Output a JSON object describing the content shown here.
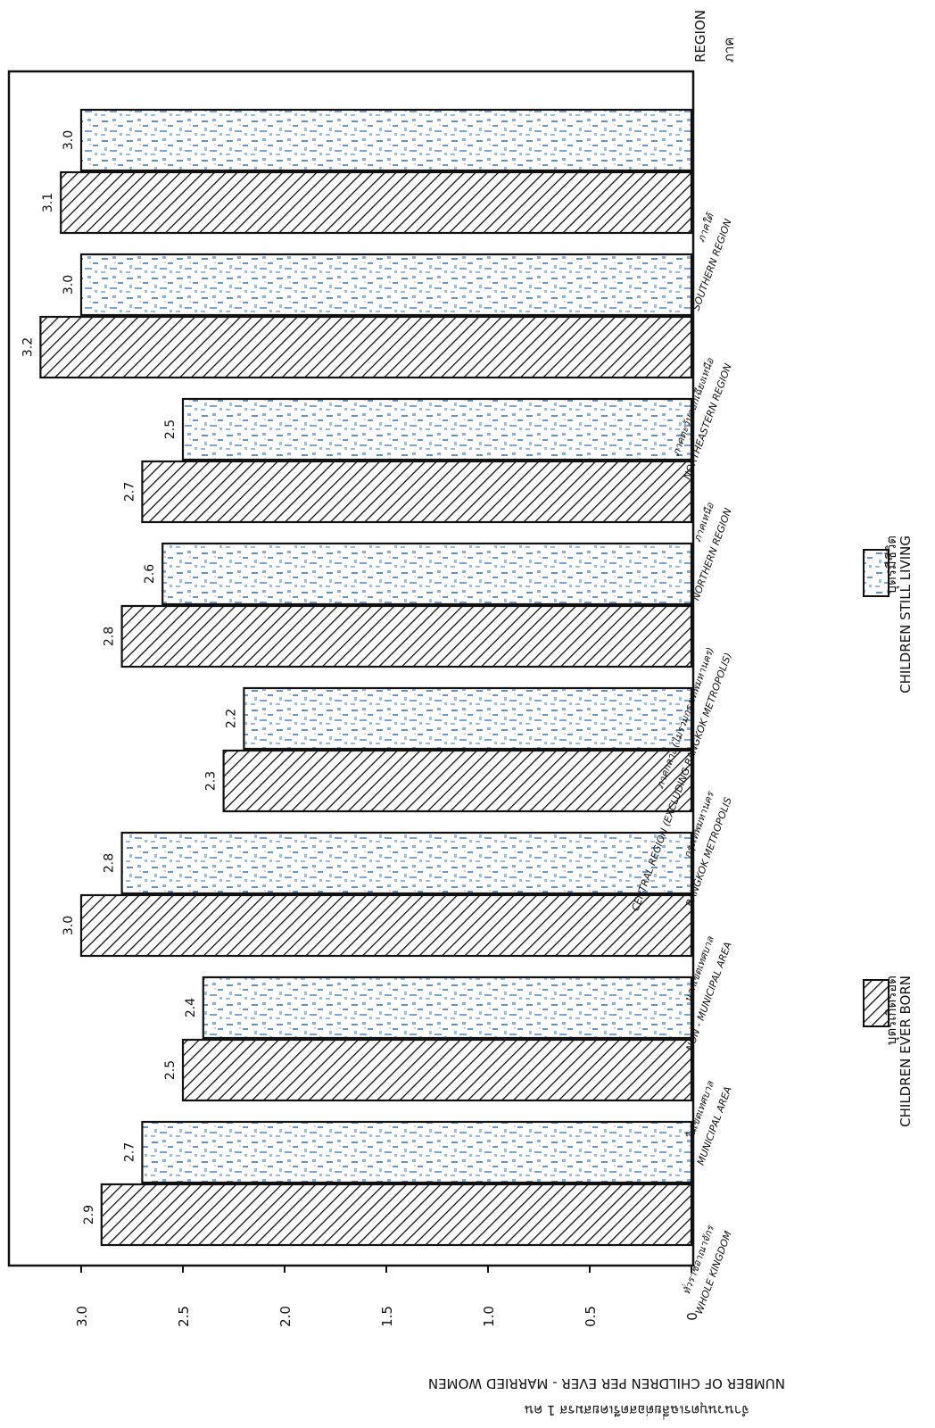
{
  "chart_data": {
    "type": "bar",
    "orientation": "vertical-rotated-page",
    "title": "",
    "ylabel_th": "จำนวนบุตรเฉลี่ยต่อสตรีเคยสมรส 1 คน",
    "ylabel": "NUMBER OF CHILDREN PER EVER - MARRIED WOMEN",
    "xlabel_th": "ภาค",
    "xlabel": "REGION",
    "ylim": [
      0,
      3.2
    ],
    "yticks": [
      "0",
      "0.5",
      "1.0",
      "1.5",
      "2.0",
      "2.5",
      "3.0"
    ],
    "grid": false,
    "legend_position": "bottom",
    "categories": [
      {
        "th": "ทั่วราชอาณาจักร",
        "en": "WHOLE KINGDOM"
      },
      {
        "th": "ในเขตเทศบาล",
        "en": "MUNICIPAL AREA"
      },
      {
        "th": "นอกเขตเทศบาล",
        "en": "NON - MUNICIPAL AREA"
      },
      {
        "th": "กรุงเทพมหานคร",
        "en": "BANGKOK METROPOLIS"
      },
      {
        "th": "ภาคกลาง (ไม่รวมกรุงเทพมหานคร)",
        "en": "CENTRAL REGION (EXCLUDING BANGKOK METROPOLIS)"
      },
      {
        "th": "ภาคเหนือ",
        "en": "NORTHERN REGION"
      },
      {
        "th": "ภาคตะวันออกเฉียงเหนือ",
        "en": "NORTHEASTERN REGION"
      },
      {
        "th": "ภาคใต้",
        "en": "SOUTHERN REGION"
      }
    ],
    "series": [
      {
        "name_th": "บุตรเกิดรอด",
        "name": "CHILDREN EVER BORN",
        "pattern": "hatch",
        "values": [
          2.9,
          2.5,
          3.0,
          2.3,
          2.8,
          2.7,
          3.2,
          3.1
        ],
        "labels": [
          "2.9",
          "2.5",
          "3.0",
          "2.3",
          "2.8",
          "2.7",
          "3.2",
          "3.1"
        ]
      },
      {
        "name_th": "บุตรมีชีวิต",
        "name": "CHILDREN STILL LIVING",
        "pattern": "speckle",
        "values": [
          2.7,
          2.4,
          2.8,
          2.2,
          2.6,
          2.5,
          3.0,
          3.0
        ],
        "labels": [
          "2.7",
          "2.4",
          "2.8",
          "2.2",
          "2.6",
          "2.5",
          "3.0",
          "3.0"
        ]
      }
    ]
  },
  "colors": {
    "ink": "#111111",
    "speckle_blue": "#3f7fbf",
    "speckle_light": "#8fb9dd",
    "paper": "#ffffff"
  }
}
